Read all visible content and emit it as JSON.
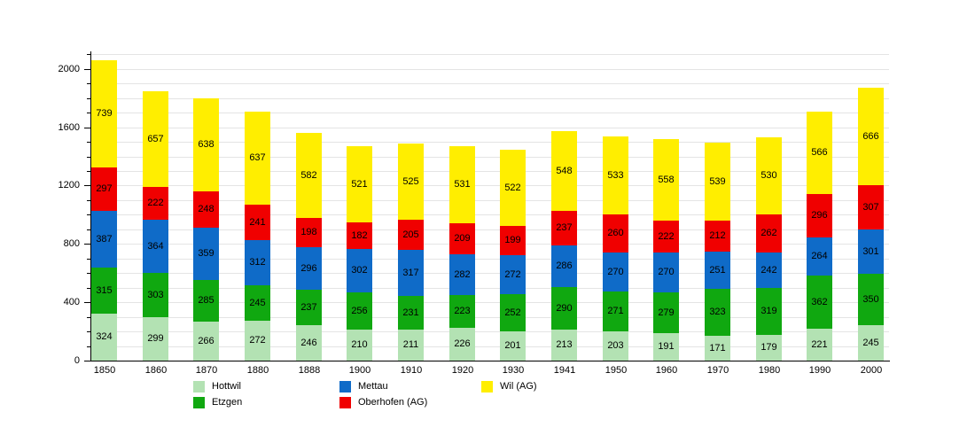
{
  "chart_data": {
    "type": "bar",
    "stacked": true,
    "title": "",
    "xlabel": "",
    "ylabel": "",
    "categories": [
      "1850",
      "1860",
      "1870",
      "1880",
      "1888",
      "1900",
      "1910",
      "1920",
      "1930",
      "1941",
      "1950",
      "1960",
      "1970",
      "1980",
      "1990",
      "2000"
    ],
    "series": [
      {
        "name": "Hottwil",
        "color": "#b3e2b3",
        "values": [
          324,
          299,
          266,
          272,
          246,
          210,
          211,
          226,
          201,
          213,
          203,
          191,
          171,
          179,
          221,
          245
        ]
      },
      {
        "name": "Etzgen",
        "color": "#10a810",
        "values": [
          315,
          303,
          285,
          245,
          237,
          256,
          231,
          223,
          252,
          290,
          271,
          279,
          323,
          319,
          362,
          350
        ]
      },
      {
        "name": "Mettau",
        "color": "#0f6bc8",
        "values": [
          387,
          364,
          359,
          312,
          296,
          302,
          317,
          282,
          272,
          286,
          270,
          270,
          251,
          242,
          264,
          301
        ]
      },
      {
        "name": "Oberhofen (AG)",
        "color": "#f00000",
        "values": [
          297,
          222,
          248,
          241,
          198,
          182,
          205,
          209,
          199,
          237,
          260,
          222,
          212,
          262,
          296,
          307
        ]
      },
      {
        "name": "Wil (AG)",
        "color": "#ffee00",
        "values": [
          739,
          657,
          638,
          637,
          582,
          521,
          525,
          531,
          522,
          548,
          533,
          558,
          539,
          530,
          566,
          666
        ]
      }
    ],
    "y_axis": {
      "labeled_ticks": [
        0,
        400,
        800,
        1200,
        1600,
        2000
      ],
      "minor_tick_step": 100,
      "max_value": 2120,
      "grid_step": 100,
      "grid_max": 2100
    },
    "legend_position": "bottom",
    "legend": {
      "rows": [
        [
          {
            "label": "Hottwil",
            "color": "#b3e2b3"
          },
          {
            "label": "Mettau",
            "color": "#0f6bc8"
          },
          {
            "label": "Wil (AG)",
            "color": "#ffee00"
          }
        ],
        [
          {
            "label": "Etzgen",
            "color": "#10a810"
          },
          {
            "label": "Oberhofen (AG)",
            "color": "#f00000"
          }
        ]
      ]
    },
    "colors": {
      "gridline": "#e4e4e4",
      "axis": "#000000",
      "value_label": "#000000"
    }
  }
}
